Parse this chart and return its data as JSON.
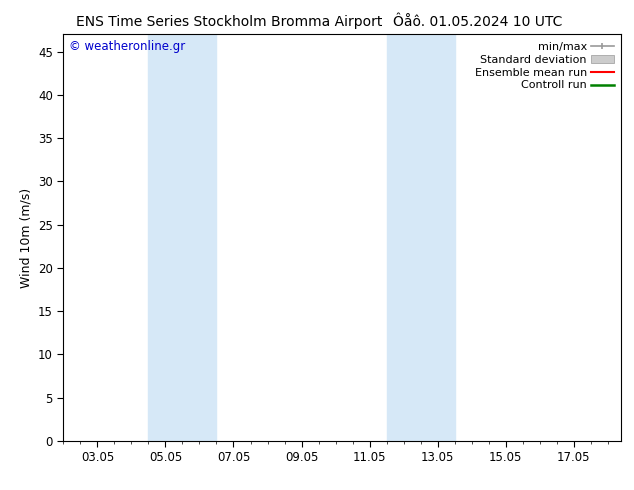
{
  "title_left": "ENS Time Series Stockholm Bromma Airport",
  "title_right": "Ôåô. 01.05.2024 10 UTC",
  "ylabel": "Wind 10m (m/s)",
  "ylim": [
    0,
    47
  ],
  "yticks": [
    0,
    5,
    10,
    15,
    20,
    25,
    30,
    35,
    40,
    45
  ],
  "xlim": [
    1.0,
    17.4
  ],
  "xtick_positions": [
    2,
    4,
    6,
    8,
    10,
    12,
    14,
    16
  ],
  "xtick_labels": [
    "03.05",
    "05.05",
    "07.05",
    "09.05",
    "11.05",
    "13.05",
    "15.05",
    "17.05"
  ],
  "shaded_bands": [
    {
      "x_start": 3.5,
      "x_end": 5.5
    },
    {
      "x_start": 10.5,
      "x_end": 12.5
    }
  ],
  "shade_color": "#d6e8f7",
  "background_color": "#ffffff",
  "watermark_text": "© weatheronline.gr",
  "watermark_color": "#0000cc",
  "legend_entries": [
    {
      "label": "min/max",
      "color": "#999999",
      "style": "line_with_ticks"
    },
    {
      "label": "Standard deviation",
      "color": "#cccccc",
      "style": "filled_rect"
    },
    {
      "label": "Ensemble mean run",
      "color": "#ff0000",
      "style": "line"
    },
    {
      "label": "Controll run",
      "color": "#008000",
      "style": "line"
    }
  ],
  "title_fontsize": 10,
  "axis_fontsize": 9,
  "tick_fontsize": 8.5,
  "legend_fontsize": 8
}
